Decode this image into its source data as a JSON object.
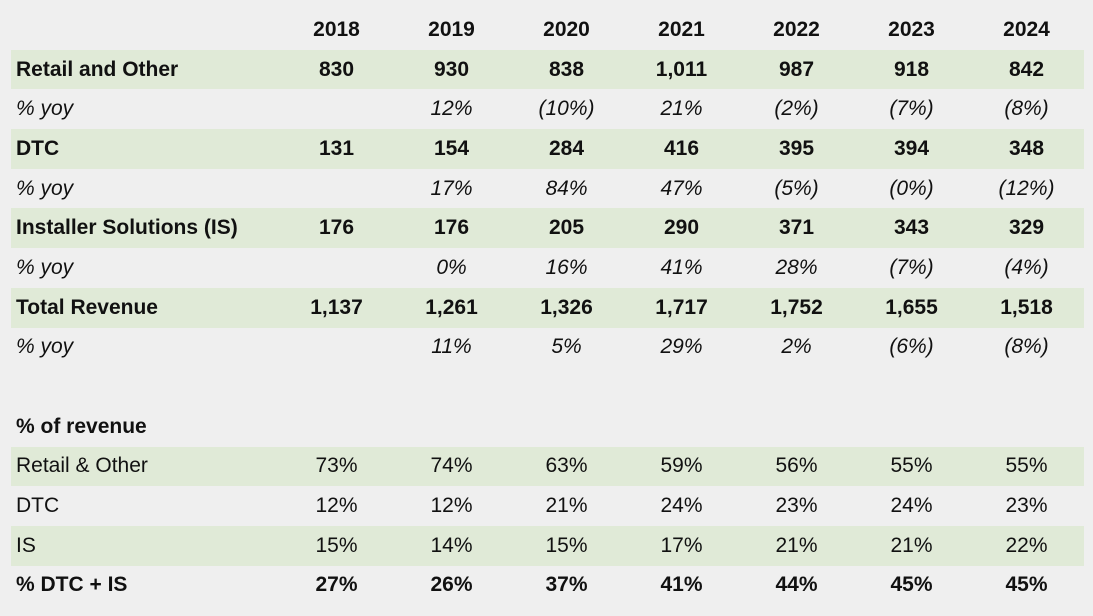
{
  "years": [
    "2018",
    "2019",
    "2020",
    "2021",
    "2022",
    "2023",
    "2024"
  ],
  "rows": [
    {
      "label": "Retail and Other",
      "values": [
        "830",
        "930",
        "838",
        "1,011",
        "987",
        "918",
        "842"
      ],
      "style": "bold green"
    },
    {
      "label": "% yoy",
      "values": [
        "",
        "12%",
        "(10%)",
        "21%",
        "(2%)",
        "(7%)",
        "(8%)"
      ],
      "style": "italic"
    },
    {
      "label": "DTC",
      "values": [
        "131",
        "154",
        "284",
        "416",
        "395",
        "394",
        "348"
      ],
      "style": "bold green"
    },
    {
      "label": "% yoy",
      "values": [
        "",
        "17%",
        "84%",
        "47%",
        "(5%)",
        "(0%)",
        "(12%)"
      ],
      "style": "italic"
    },
    {
      "label": "Installer Solutions (IS)",
      "values": [
        "176",
        "176",
        "205",
        "290",
        "371",
        "343",
        "329"
      ],
      "style": "bold green"
    },
    {
      "label": "% yoy",
      "values": [
        "",
        "0%",
        "16%",
        "41%",
        "28%",
        "(7%)",
        "(4%)"
      ],
      "style": "italic"
    },
    {
      "label": "Total Revenue",
      "values": [
        "1,137",
        "1,261",
        "1,326",
        "1,717",
        "1,752",
        "1,655",
        "1,518"
      ],
      "style": "bold green"
    },
    {
      "label": "% yoy",
      "values": [
        "",
        "11%",
        "5%",
        "29%",
        "2%",
        "(6%)",
        "(8%)"
      ],
      "style": "italic"
    },
    {
      "label": "",
      "values": [
        "",
        "",
        "",
        "",
        "",
        "",
        ""
      ],
      "style": "spacer"
    },
    {
      "label": "% of revenue",
      "values": [
        "",
        "",
        "",
        "",
        "",
        "",
        ""
      ],
      "style": "bold"
    },
    {
      "label": "Retail & Other",
      "values": [
        "73%",
        "74%",
        "63%",
        "59%",
        "56%",
        "55%",
        "55%"
      ],
      "style": "green"
    },
    {
      "label": "DTC",
      "values": [
        "12%",
        "12%",
        "21%",
        "24%",
        "23%",
        "24%",
        "23%"
      ],
      "style": ""
    },
    {
      "label": "IS",
      "values": [
        "15%",
        "14%",
        "15%",
        "17%",
        "21%",
        "21%",
        "22%"
      ],
      "style": "green"
    },
    {
      "label": "% DTC + IS",
      "values": [
        "27%",
        "26%",
        "37%",
        "41%",
        "44%",
        "45%",
        "45%"
      ],
      "style": "bold"
    }
  ]
}
